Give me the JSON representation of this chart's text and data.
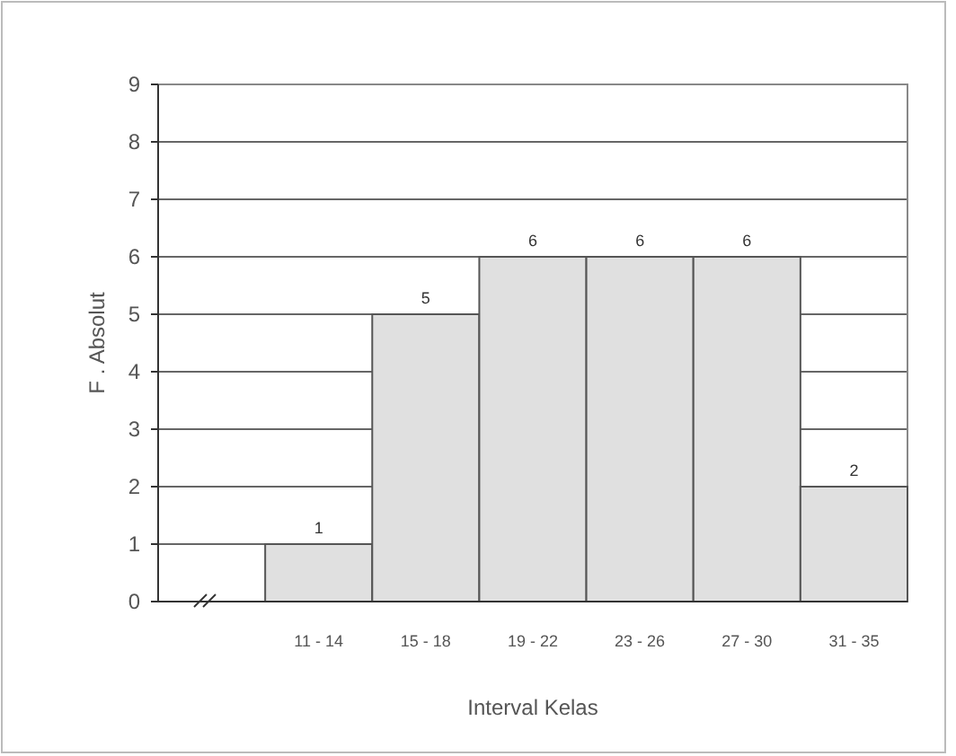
{
  "chart_data": {
    "type": "bar",
    "xlabel": "Interval Kelas",
    "ylabel": "F . Absolut",
    "categories": [
      null,
      "11 - 14",
      "15 - 18",
      "19 - 22",
      "23 - 26",
      "27 - 30",
      "31 - 35"
    ],
    "values": [
      null,
      1,
      5,
      6,
      6,
      6,
      2
    ],
    "color": "#e0e0e0",
    "ylim": [
      0,
      9
    ],
    "yticks": [
      0,
      1,
      2,
      3,
      4,
      5,
      6,
      7,
      8,
      9
    ],
    "grid": "y",
    "data_labels": true
  }
}
